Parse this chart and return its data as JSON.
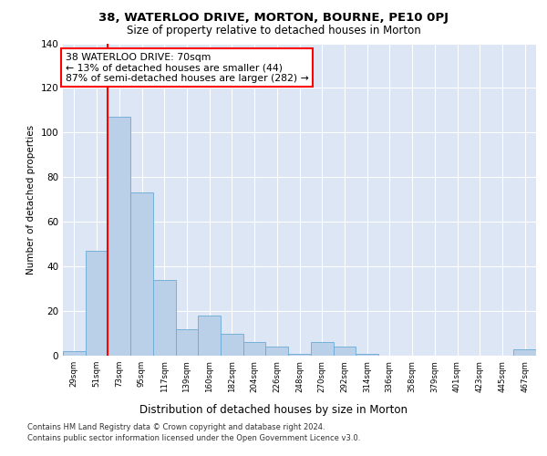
{
  "title1": "38, WATERLOO DRIVE, MORTON, BOURNE, PE10 0PJ",
  "title2": "Size of property relative to detached houses in Morton",
  "xlabel": "Distribution of detached houses by size in Morton",
  "ylabel": "Number of detached properties",
  "categories": [
    "29sqm",
    "51sqm",
    "73sqm",
    "95sqm",
    "117sqm",
    "139sqm",
    "160sqm",
    "182sqm",
    "204sqm",
    "226sqm",
    "248sqm",
    "270sqm",
    "292sqm",
    "314sqm",
    "336sqm",
    "358sqm",
    "379sqm",
    "401sqm",
    "423sqm",
    "445sqm",
    "467sqm"
  ],
  "values": [
    2,
    47,
    107,
    73,
    34,
    12,
    18,
    10,
    6,
    4,
    1,
    6,
    4,
    1,
    0,
    0,
    0,
    0,
    0,
    0,
    3
  ],
  "bar_color": "#bad0e8",
  "bar_edge_color": "#6aaad4",
  "background_color": "#dce6f5",
  "grid_color": "#ffffff",
  "red_line_index": 2,
  "annotation_line1": "38 WATERLOO DRIVE: 70sqm",
  "annotation_line2": "← 13% of detached houses are smaller (44)",
  "annotation_line3": "87% of semi-detached houses are larger (282) →",
  "footer1": "Contains HM Land Registry data © Crown copyright and database right 2024.",
  "footer2": "Contains public sector information licensed under the Open Government Licence v3.0.",
  "ylim": [
    0,
    140
  ],
  "yticks": [
    0,
    20,
    40,
    60,
    80,
    100,
    120,
    140
  ]
}
